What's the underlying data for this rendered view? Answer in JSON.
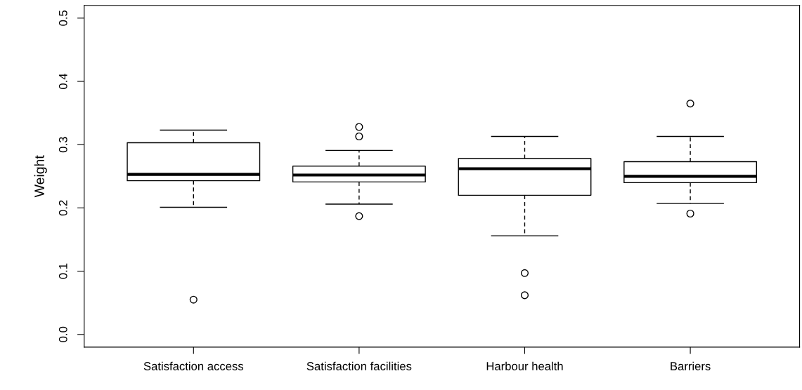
{
  "chart_data": {
    "type": "box",
    "ylabel": "Weight",
    "categories": [
      "Satisfaction access",
      "Satisfaction facilities",
      "Harbour health",
      "Barriers"
    ],
    "boxes": [
      {
        "low": 0.201,
        "q1": 0.243,
        "median": 0.253,
        "q3": 0.303,
        "high": 0.323,
        "outliers": [
          0.055
        ]
      },
      {
        "low": 0.206,
        "q1": 0.241,
        "median": 0.252,
        "q3": 0.266,
        "high": 0.291,
        "outliers": [
          0.328,
          0.313,
          0.187
        ]
      },
      {
        "low": 0.156,
        "q1": 0.22,
        "median": 0.262,
        "q3": 0.278,
        "high": 0.313,
        "outliers": [
          0.097,
          0.062
        ]
      },
      {
        "low": 0.207,
        "q1": 0.24,
        "median": 0.25,
        "q3": 0.273,
        "high": 0.313,
        "outliers": [
          0.365,
          0.191
        ]
      }
    ],
    "ylim": [
      -0.02,
      0.52
    ],
    "yticks": [
      {
        "value": 0,
        "label": "0.0"
      },
      0.1,
      0.2,
      0.3,
      0.4,
      0.5
    ],
    "grid": false,
    "legend": false
  }
}
